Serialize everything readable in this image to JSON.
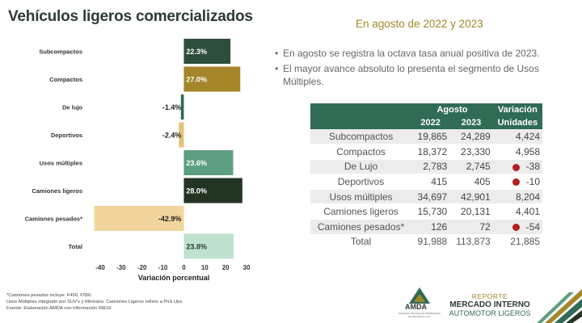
{
  "title": "Vehículos ligeros comercializados",
  "subtitle": "En agosto de 2022 y 2023",
  "bullets": [
    "En agosto se registra la octava tasa anual positiva de 2023.",
    "El mayor avance absoluto lo presenta el segmento de Usos Múltiples."
  ],
  "chart_data": {
    "type": "bar",
    "orientation": "horizontal",
    "categories": [
      "Subcompactos",
      "Compactos",
      "De lujo",
      "Deportivos",
      "Usos múltiples",
      "Camiones ligeros",
      "Camiones pesados*",
      "Total"
    ],
    "values": [
      22.3,
      27.0,
      -1.4,
      -2.4,
      23.6,
      28.0,
      -42.9,
      23.8
    ],
    "labels": [
      "22.3%",
      "27.0%",
      "-1.4%",
      "-2.4%",
      "23.6%",
      "28.0%",
      "-42.9%",
      "23.8%"
    ],
    "colors": [
      "#2f4d3c",
      "#a4852a",
      "#2f6b55",
      "#e4c27a",
      "#5e9e80",
      "#233423",
      "#f2d59c",
      "#bfe2cf"
    ],
    "xlabel": "Variación porcentual",
    "xlim": [
      -40,
      30
    ],
    "xticks": [
      -40,
      -30,
      -20,
      -10,
      0,
      10,
      20,
      30
    ],
    "xtick_labels": [
      "-40",
      "-30",
      "-20",
      "-10",
      "0",
      "10",
      "20",
      "30"
    ]
  },
  "table": {
    "group_header": "Agosto",
    "col_2022": "2022",
    "col_2023": "2023",
    "var_header_1": "Variación",
    "var_header_2": "Unidades",
    "rows": [
      {
        "name": "Subcompactos",
        "y2022": "19,865",
        "y2023": "24,289",
        "var": "4,424",
        "neg": false
      },
      {
        "name": "Compactos",
        "y2022": "18,372",
        "y2023": "23,330",
        "var": "4,958",
        "neg": false
      },
      {
        "name": "De Lujo",
        "y2022": "2,783",
        "y2023": "2,745",
        "var": "-38",
        "neg": true
      },
      {
        "name": "Deportivos",
        "y2022": "415",
        "y2023": "405",
        "var": "-10",
        "neg": true
      },
      {
        "name": "Usos múltiples",
        "y2022": "34,697",
        "y2023": "42,901",
        "var": "8,204",
        "neg": false
      },
      {
        "name": "Camiones ligeros",
        "y2022": "15,730",
        "y2023": "20,131",
        "var": "4,401",
        "neg": false
      },
      {
        "name": "Camiones pesados*",
        "y2022": "126",
        "y2023": "72",
        "var": "-54",
        "neg": true
      },
      {
        "name": "Total",
        "y2022": "91,988",
        "y2023": "113,873",
        "var": "21,885",
        "neg": false
      }
    ]
  },
  "notes": [
    "*Camiones pesados incluye: F450, F550.",
    "Usos Múltiples integrado por SUV's y Minivans. Camiones Ligeros refiere a Pick Ups.",
    "Fuente: Elaboración AMDA con información INEGI."
  ],
  "logo": {
    "brand": "AMDA",
    "org": "Asociación Mexicana de Distribuidores de Automotores, A.C."
  },
  "report": {
    "line1": "REPORTE",
    "line2": "MERCADO INTERNO",
    "line3": "AUTOMOTOR LIGEROS"
  }
}
